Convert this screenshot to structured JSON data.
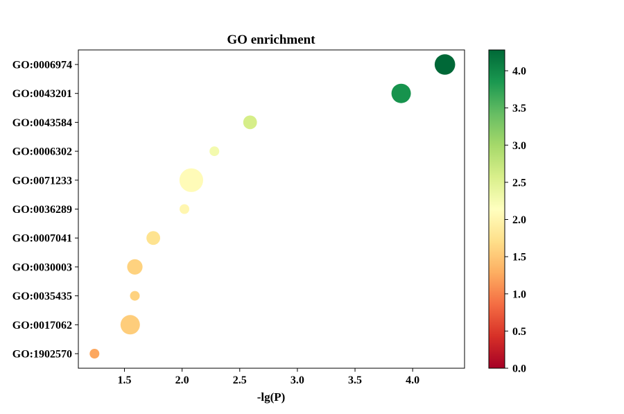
{
  "chart_data": {
    "type": "scatter",
    "title": "GO enrichment",
    "xlabel": "-lg(P)",
    "ylabel": "",
    "xlim": [
      1.1,
      4.45
    ],
    "x_ticks": [
      "1.5",
      "2.0",
      "2.5",
      "3.0",
      "3.5",
      "4.0"
    ],
    "categories": [
      "GO:1902570",
      "GO:0017062",
      "GO:0035435",
      "GO:0030003",
      "GO:0007041",
      "GO:0036289",
      "GO:0071233",
      "GO:0006302",
      "GO:0043584",
      "GO:0043201",
      "GO:0006974"
    ],
    "points": [
      {
        "term": "GO:1902570",
        "x": 1.24,
        "color_value": 1.24,
        "size": 1
      },
      {
        "term": "GO:0017062",
        "x": 1.55,
        "color_value": 1.55,
        "size": 4
      },
      {
        "term": "GO:0035435",
        "x": 1.59,
        "color_value": 1.59,
        "size": 1
      },
      {
        "term": "GO:0030003",
        "x": 1.59,
        "color_value": 1.59,
        "size": 2.5
      },
      {
        "term": "GO:0007041",
        "x": 1.75,
        "color_value": 1.75,
        "size": 2
      },
      {
        "term": "GO:0036289",
        "x": 2.02,
        "color_value": 2.02,
        "size": 1
      },
      {
        "term": "GO:0071233",
        "x": 2.08,
        "color_value": 2.08,
        "size": 6
      },
      {
        "term": "GO:0006302",
        "x": 2.28,
        "color_value": 2.28,
        "size": 1
      },
      {
        "term": "GO:0043584",
        "x": 2.59,
        "color_value": 2.59,
        "size": 2
      },
      {
        "term": "GO:0043201",
        "x": 3.9,
        "color_value": 3.9,
        "size": 4
      },
      {
        "term": "GO:0006974",
        "x": 4.28,
        "color_value": 4.28,
        "size": 4.5
      }
    ],
    "colorbar": {
      "colormap": "RdYlGn",
      "range": [
        0,
        4.28
      ],
      "ticks": [
        "0.0",
        "0.5",
        "1.0",
        "1.5",
        "2.0",
        "2.5",
        "3.0",
        "3.5",
        "4.0"
      ]
    },
    "grid": false,
    "legend": "none"
  }
}
